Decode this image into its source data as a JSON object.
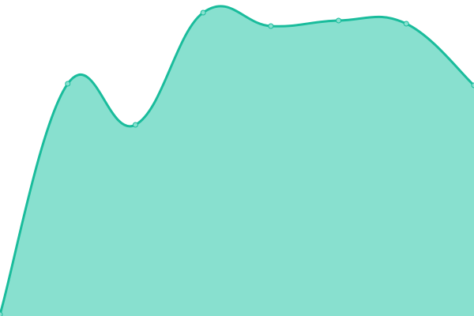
{
  "chart_data": {
    "type": "area",
    "x": [
      0,
      1,
      2,
      3,
      4,
      5,
      6,
      7
    ],
    "series": [
      {
        "values": [
          0.5,
          73.5,
          60.5,
          96,
          91.75,
          93.5,
          92.5,
          73
        ]
      }
    ],
    "ylim": [
      0,
      100
    ],
    "title": "",
    "xlabel": "",
    "ylabel": "",
    "grid": false,
    "axes_visible": false,
    "curve": "smooth",
    "colors": {
      "line": "#1abc9c",
      "fill": "#88e0cf",
      "point_fill": "#88e0cf"
    }
  }
}
